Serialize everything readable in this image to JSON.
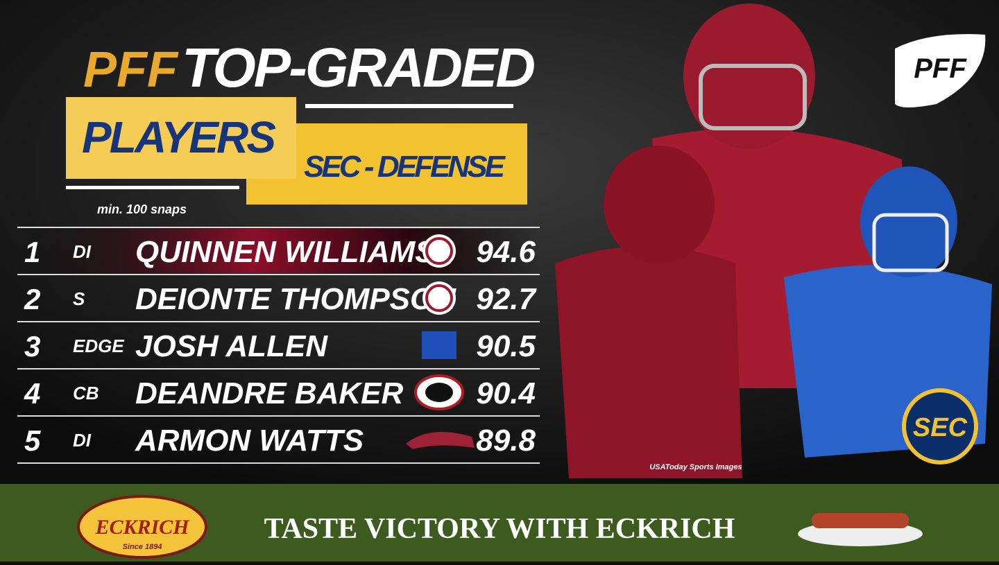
{
  "header": {
    "brand": "PFF",
    "title": "TOP-GRADED",
    "subtitle": "PLAYERS",
    "tag": "SEC - DEFENSE",
    "note": "min. 100 snaps"
  },
  "table": {
    "rows": [
      {
        "rank": 1,
        "position": "DI",
        "name": "QUINNEN WILLIAMS",
        "grade": 94.6,
        "team": "alabama"
      },
      {
        "rank": 2,
        "position": "S",
        "name": "DEIONTE THOMPSON",
        "grade": 92.7,
        "team": "alabama"
      },
      {
        "rank": 3,
        "position": "EDGE",
        "name": "JOSH ALLEN",
        "grade": 90.5,
        "team": "kentucky"
      },
      {
        "rank": 4,
        "position": "CB",
        "name": "DEANDRE BAKER",
        "grade": 90.4,
        "team": "georgia"
      },
      {
        "rank": 5,
        "position": "DI",
        "name": "ARMON WATTS",
        "grade": 89.8,
        "team": "arkansas"
      }
    ]
  },
  "logo": "PFF",
  "conference_logo": "SEC",
  "credit": "USAToday Sports Images",
  "sponsor": {
    "name": "ECKRICH",
    "since": "Since 1894",
    "slogan": "TASTE VICTORY WITH ECKRICH"
  }
}
